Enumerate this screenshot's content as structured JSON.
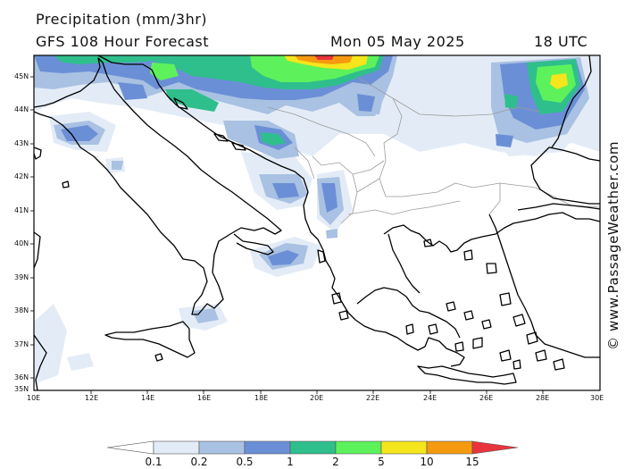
{
  "header": {
    "title": "Precipitation (mm/3hr)",
    "subtitle": "GFS 108 Hour Forecast",
    "date": "Mon 05 May 2025",
    "time": "18 UTC"
  },
  "axes": {
    "lat_labels": [
      "45N",
      "44N",
      "43N",
      "42N",
      "41N",
      "40N",
      "39N",
      "38N",
      "37N",
      "36N",
      "35N"
    ],
    "lon_labels": [
      "10E",
      "12E",
      "14E",
      "16E",
      "18E",
      "20E",
      "22E",
      "24E",
      "26E",
      "28E",
      "30E"
    ]
  },
  "watermark": "© www.PassageWeather.com",
  "legend": {
    "labels": [
      "0.1",
      "0.2",
      "0.5",
      "1",
      "2",
      "5",
      "10",
      "15"
    ],
    "colors": [
      "#ffffff",
      "#e3ecf6",
      "#a9c1e2",
      "#6b8fd6",
      "#2fbf8c",
      "#5df25b",
      "#f5e51c",
      "#f59a10",
      "#e8343c"
    ]
  },
  "palette": {
    "very_light": "#e3ecf6",
    "light_blue": "#a9c1e2",
    "blue": "#6b8fd6",
    "teal": "#2fbf8c",
    "green": "#5df25b",
    "yellow": "#f5e51c",
    "orange": "#f59a10",
    "red": "#e8343c",
    "border": "#9b9b9b",
    "coast": "#000000"
  }
}
